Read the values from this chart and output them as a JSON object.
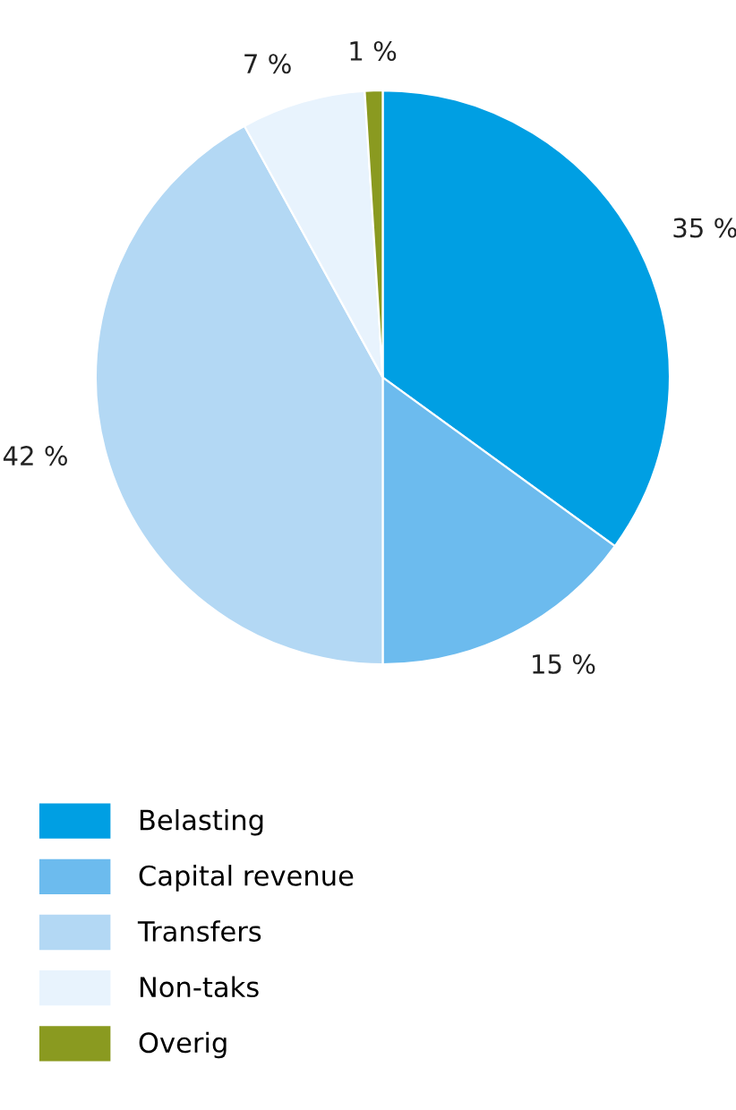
{
  "chart_data": {
    "type": "pie",
    "categories": [
      "Belasting",
      "Capital revenue",
      "Transfers",
      "Non-taks",
      "Overig"
    ],
    "values": [
      35,
      15,
      42,
      7,
      1
    ],
    "value_labels": [
      "35 %",
      "15 %",
      "42 %",
      "7 %",
      "1 %"
    ],
    "colors": [
      "#009fe3",
      "#6cbbee",
      "#b3d8f4",
      "#e8f3fd",
      "#8a9a20"
    ],
    "legend": "bottom left"
  }
}
